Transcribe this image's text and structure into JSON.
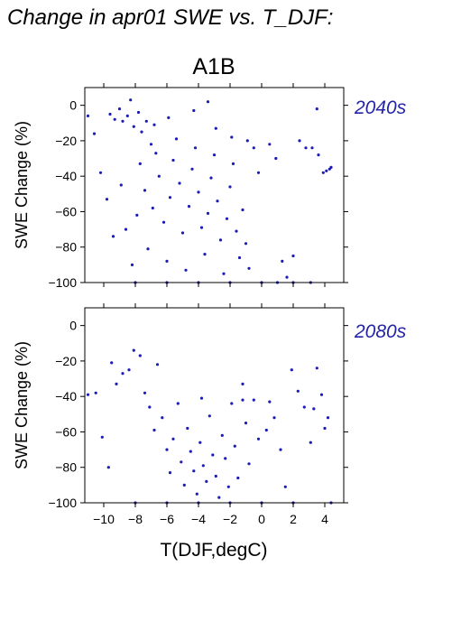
{
  "title": "Change in apr01 SWE vs. T_DJF:",
  "scenario": "A1B",
  "point_color": "#1c1cb8",
  "label_color": "#2424a8",
  "chart_data": [
    {
      "type": "scatter",
      "period": "2040s",
      "xlabel": "",
      "ylabel": "SWE Change (%)",
      "xlim": [
        -11.2,
        5.2
      ],
      "ylim": [
        -100,
        10
      ],
      "xticks": [
        -10,
        -8,
        -6,
        -4,
        -2,
        0,
        2,
        4
      ],
      "yticks": [
        0,
        -20,
        -40,
        -60,
        -80,
        -100
      ],
      "points": [
        [
          -11,
          -6
        ],
        [
          -10.6,
          -16
        ],
        [
          -10.2,
          -38
        ],
        [
          -9.8,
          -53
        ],
        [
          -9.4,
          -74
        ],
        [
          -9.6,
          -5
        ],
        [
          -9.3,
          -8
        ],
        [
          -9.0,
          -2
        ],
        [
          -8.8,
          -9
        ],
        [
          -8.5,
          -6
        ],
        [
          -8.3,
          3
        ],
        [
          -8.1,
          -12
        ],
        [
          -7.8,
          -4
        ],
        [
          -7.6,
          -15
        ],
        [
          -7.3,
          -9
        ],
        [
          -7.0,
          -22
        ],
        [
          -8.9,
          -45
        ],
        [
          -8.6,
          -70
        ],
        [
          -8.2,
          -90
        ],
        [
          -7.9,
          -62
        ],
        [
          -7.7,
          -33
        ],
        [
          -7.4,
          -48
        ],
        [
          -7.2,
          -81
        ],
        [
          -6.9,
          -58
        ],
        [
          -6.7,
          -27
        ],
        [
          -6.5,
          -40
        ],
        [
          -6.2,
          -66
        ],
        [
          -6.0,
          -88
        ],
        [
          -5.8,
          -52
        ],
        [
          -5.6,
          -31
        ],
        [
          -5.4,
          -19
        ],
        [
          -5.2,
          -44
        ],
        [
          -5.0,
          -72
        ],
        [
          -4.8,
          -93
        ],
        [
          -4.6,
          -57
        ],
        [
          -4.4,
          -36
        ],
        [
          -4.2,
          -24
        ],
        [
          -4.0,
          -49
        ],
        [
          -3.8,
          -69
        ],
        [
          -3.6,
          -84
        ],
        [
          -3.4,
          -61
        ],
        [
          -3.2,
          -41
        ],
        [
          -3.0,
          -28
        ],
        [
          -2.8,
          -54
        ],
        [
          -2.6,
          -76
        ],
        [
          -2.4,
          -95
        ],
        [
          -2.2,
          -64
        ],
        [
          -2.0,
          -46
        ],
        [
          -1.8,
          -33
        ],
        [
          -1.6,
          -71
        ],
        [
          -1.4,
          -86
        ],
        [
          -1.2,
          -59
        ],
        [
          -1.0,
          -78
        ],
        [
          -0.8,
          -92
        ],
        [
          -0.5,
          -24
        ],
        [
          -0.2,
          -38
        ],
        [
          0.5,
          -22
        ],
        [
          0.9,
          -30
        ],
        [
          1.3,
          -88
        ],
        [
          1.6,
          -97
        ],
        [
          2.0,
          -85
        ],
        [
          2.4,
          -20
        ],
        [
          2.8,
          -24
        ],
        [
          3.2,
          -24
        ],
        [
          3.6,
          -28
        ],
        [
          3.5,
          -2
        ],
        [
          3.9,
          -38
        ],
        [
          4.1,
          -37
        ],
        [
          4.3,
          -36
        ],
        [
          4.4,
          -35
        ],
        [
          -3.4,
          2
        ],
        [
          -4.3,
          -3
        ],
        [
          -6.8,
          -11
        ],
        [
          -5.9,
          -7
        ],
        [
          -2.9,
          -13
        ],
        [
          -1.9,
          -18
        ],
        [
          -0.9,
          -20
        ],
        [
          1.0,
          -100
        ],
        [
          3.1,
          -100
        ],
        [
          -8.0,
          -100
        ],
        [
          -6.0,
          -100
        ],
        [
          -4.0,
          -100
        ],
        [
          -2.0,
          -100
        ],
        [
          0.0,
          -100
        ],
        [
          2.0,
          -100
        ]
      ],
      "note_points": "representative sample of the dense point cloud"
    },
    {
      "type": "scatter",
      "period": "2080s",
      "xlabel": "T(DJF,degC)",
      "ylabel": "SWE Change (%)",
      "xlim": [
        -11.2,
        5.2
      ],
      "ylim": [
        -100,
        10
      ],
      "xticks": [
        -10,
        -8,
        -6,
        -4,
        -2,
        0,
        2,
        4
      ],
      "yticks": [
        0,
        -20,
        -40,
        -60,
        -80,
        -100
      ],
      "xticklabels": [
        "−10",
        "−8",
        "−6",
        "−4",
        "−2",
        "0",
        "2",
        "4"
      ],
      "yticklabels": [
        "0",
        "−20",
        "−40",
        "−60",
        "−80",
        "−100"
      ],
      "points": [
        [
          -11,
          -39
        ],
        [
          -10.5,
          -38
        ],
        [
          -10.1,
          -63
        ],
        [
          -9.7,
          -80
        ],
        [
          -9.5,
          -21
        ],
        [
          -9.2,
          -33
        ],
        [
          -8.8,
          -27
        ],
        [
          -8.4,
          -25
        ],
        [
          -8.1,
          -14
        ],
        [
          -7.7,
          -17
        ],
        [
          -7.4,
          -38
        ],
        [
          -7.1,
          -46
        ],
        [
          -6.8,
          -59
        ],
        [
          -6.6,
          -22
        ],
        [
          -6.3,
          -52
        ],
        [
          -6.0,
          -70
        ],
        [
          -5.8,
          -83
        ],
        [
          -5.6,
          -64
        ],
        [
          -5.3,
          -44
        ],
        [
          -5.1,
          -77
        ],
        [
          -4.9,
          -90
        ],
        [
          -4.7,
          -58
        ],
        [
          -4.5,
          -71
        ],
        [
          -4.3,
          -82
        ],
        [
          -4.1,
          -95
        ],
        [
          -3.9,
          -66
        ],
        [
          -3.7,
          -79
        ],
        [
          -3.5,
          -88
        ],
        [
          -3.3,
          -51
        ],
        [
          -3.1,
          -73
        ],
        [
          -2.9,
          -85
        ],
        [
          -2.7,
          -97
        ],
        [
          -2.5,
          -62
        ],
        [
          -2.3,
          -75
        ],
        [
          -2.1,
          -91
        ],
        [
          -1.9,
          -44
        ],
        [
          -1.7,
          -68
        ],
        [
          -1.5,
          -86
        ],
        [
          -1.2,
          -33
        ],
        [
          -1.0,
          -55
        ],
        [
          -0.8,
          -78
        ],
        [
          -0.5,
          -42
        ],
        [
          -0.2,
          -64
        ],
        [
          0.3,
          -59
        ],
        [
          0.8,
          -52
        ],
        [
          1.2,
          -70
        ],
        [
          1.5,
          -91
        ],
        [
          1.9,
          -25
        ],
        [
          2.3,
          -37
        ],
        [
          2.7,
          -46
        ],
        [
          3.1,
          -66
        ],
        [
          3.3,
          -47
        ],
        [
          3.5,
          -24
        ],
        [
          3.8,
          -39
        ],
        [
          4.0,
          -58
        ],
        [
          4.2,
          -52
        ],
        [
          4.4,
          -100
        ],
        [
          -8.0,
          -100
        ],
        [
          -6.0,
          -100
        ],
        [
          -4.0,
          -100
        ],
        [
          -2.0,
          -100
        ],
        [
          0.0,
          -100
        ],
        [
          2.0,
          -100
        ],
        [
          -1.2,
          -42
        ],
        [
          0.5,
          -43
        ],
        [
          -3.8,
          -41
        ]
      ],
      "note_points": "representative sample of the dense point cloud"
    }
  ]
}
